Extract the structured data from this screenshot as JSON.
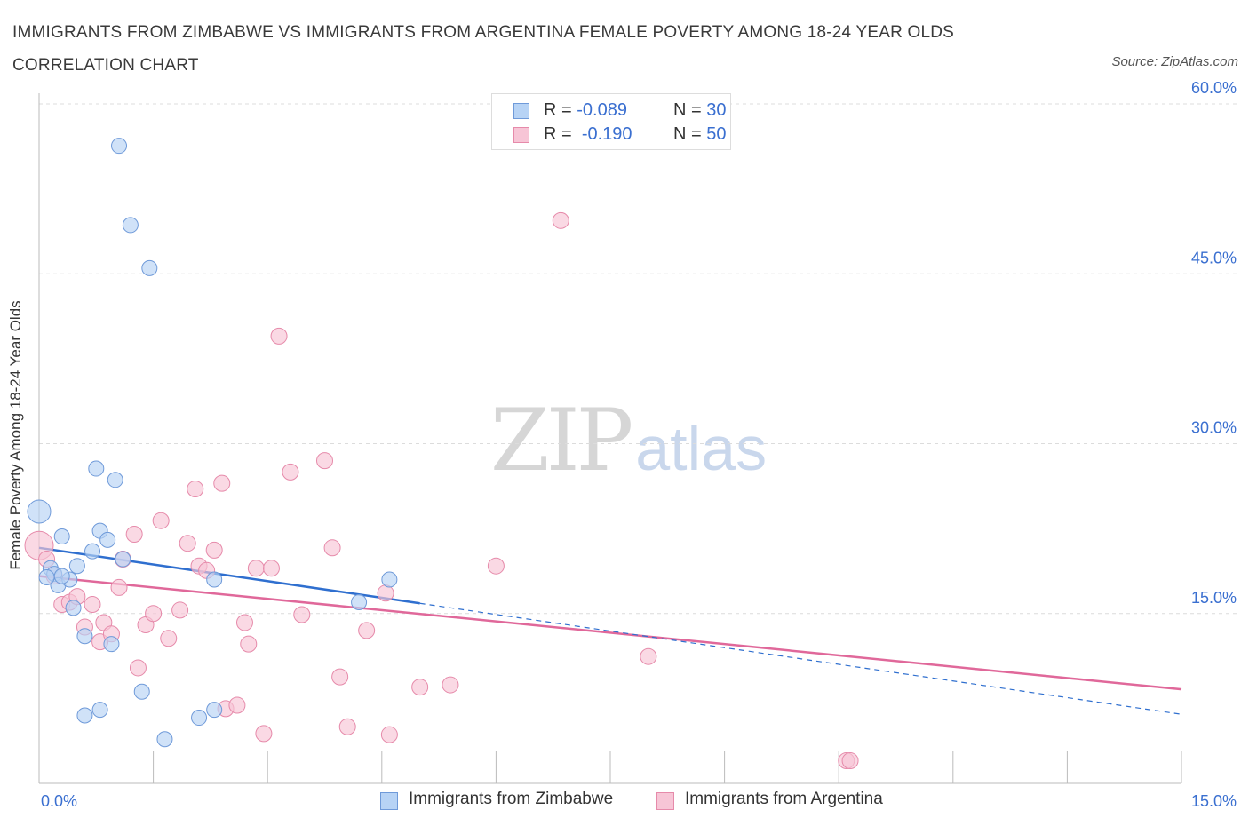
{
  "title": "IMMIGRANTS FROM ZIMBABWE VS IMMIGRANTS FROM ARGENTINA FEMALE POVERTY AMONG 18-24 YEAR OLDS CORRELATION CHART",
  "source": "Source: ZipAtlas.com",
  "watermark": {
    "zip": "ZIP",
    "atlas": "atlas"
  },
  "legend_top": {
    "rows": [
      {
        "r_label": "R =",
        "r_value": "-0.089",
        "n_label": "N =",
        "n_value": "30"
      },
      {
        "r_label": "R =",
        "r_value": "-0.190",
        "n_label": "N =",
        "n_value": "50"
      }
    ]
  },
  "colors": {
    "zimbabwe_fill": "#b7d3f5",
    "zimbabwe_stroke": "#6f9ad9",
    "zimbabwe_line": "#2f6fcf",
    "argentina_fill": "#f7c5d6",
    "argentina_stroke": "#e68aaa",
    "argentina_line": "#e0689a",
    "tick_label": "#3a6fd0",
    "grid": "#dcdcdc"
  },
  "chart_data": {
    "type": "scatter",
    "title": "IMMIGRANTS FROM ZIMBABWE VS IMMIGRANTS FROM ARGENTINA FEMALE POVERTY AMONG 18-24 YEAR OLDS CORRELATION CHART",
    "xlabel": "",
    "ylabel": "Female Poverty Among 18-24 Year Olds",
    "xlim": [
      0,
      15
    ],
    "ylim": [
      0,
      60
    ],
    "x_tick_labels": [
      "0.0%",
      "15.0%"
    ],
    "y_ticks": [
      15,
      30,
      45,
      60
    ],
    "y_tick_labels": [
      "15.0%",
      "30.0%",
      "45.0%",
      "60.0%"
    ],
    "grid": true,
    "legend_position": "bottom",
    "series": [
      {
        "name": "Immigrants from Zimbabwe",
        "points": [
          [
            0.0,
            24.0
          ],
          [
            0.15,
            19.0
          ],
          [
            0.2,
            18.5
          ],
          [
            0.25,
            17.5
          ],
          [
            0.3,
            21.8
          ],
          [
            0.4,
            18.0
          ],
          [
            0.5,
            19.2
          ],
          [
            0.45,
            15.5
          ],
          [
            0.6,
            13.0
          ],
          [
            0.7,
            20.5
          ],
          [
            0.75,
            27.8
          ],
          [
            0.8,
            22.3
          ],
          [
            0.9,
            21.5
          ],
          [
            0.95,
            12.3
          ],
          [
            1.0,
            26.8
          ],
          [
            1.1,
            19.8
          ],
          [
            1.05,
            56.3
          ],
          [
            1.2,
            49.3
          ],
          [
            1.45,
            45.5
          ],
          [
            1.35,
            8.1
          ],
          [
            1.65,
            3.9
          ],
          [
            0.8,
            6.5
          ],
          [
            0.6,
            6.0
          ],
          [
            2.1,
            5.8
          ],
          [
            2.3,
            6.5
          ],
          [
            2.3,
            18.0
          ],
          [
            4.2,
            16.0
          ],
          [
            4.6,
            18.0
          ],
          [
            0.1,
            18.2
          ],
          [
            0.3,
            18.3
          ]
        ],
        "trend": {
          "x": [
            0.0,
            5.0
          ],
          "y": [
            20.8,
            15.9
          ]
        },
        "trend_extension": {
          "x": [
            5.0,
            15.0
          ],
          "y": [
            15.9,
            6.1
          ]
        }
      },
      {
        "name": "Immigrants from Argentina",
        "points": [
          [
            0.0,
            21.0
          ],
          [
            0.1,
            19.8
          ],
          [
            0.3,
            15.8
          ],
          [
            0.4,
            16.0
          ],
          [
            0.5,
            16.5
          ],
          [
            0.6,
            13.8
          ],
          [
            0.7,
            15.8
          ],
          [
            0.8,
            12.5
          ],
          [
            0.85,
            14.2
          ],
          [
            0.95,
            13.2
          ],
          [
            1.05,
            17.3
          ],
          [
            1.1,
            19.8
          ],
          [
            1.25,
            22.0
          ],
          [
            1.3,
            10.2
          ],
          [
            1.4,
            14.0
          ],
          [
            1.5,
            15.0
          ],
          [
            1.6,
            23.2
          ],
          [
            1.7,
            12.8
          ],
          [
            1.85,
            15.3
          ],
          [
            1.95,
            21.2
          ],
          [
            2.05,
            26.0
          ],
          [
            2.1,
            19.2
          ],
          [
            2.2,
            18.8
          ],
          [
            2.3,
            20.6
          ],
          [
            2.4,
            26.5
          ],
          [
            2.45,
            6.6
          ],
          [
            2.6,
            6.9
          ],
          [
            2.7,
            14.2
          ],
          [
            2.75,
            12.3
          ],
          [
            2.85,
            19.0
          ],
          [
            2.95,
            4.4
          ],
          [
            3.05,
            19.0
          ],
          [
            3.15,
            39.5
          ],
          [
            3.3,
            27.5
          ],
          [
            3.45,
            14.9
          ],
          [
            3.75,
            28.5
          ],
          [
            3.85,
            20.8
          ],
          [
            3.95,
            9.4
          ],
          [
            4.05,
            5.0
          ],
          [
            4.3,
            13.5
          ],
          [
            4.55,
            16.8
          ],
          [
            4.6,
            4.3
          ],
          [
            5.0,
            8.5
          ],
          [
            5.4,
            8.7
          ],
          [
            6.0,
            19.2
          ],
          [
            6.85,
            49.7
          ],
          [
            8.0,
            11.2
          ],
          [
            10.6,
            2.0
          ],
          [
            10.65,
            2.0
          ],
          [
            0.2,
            18.3
          ]
        ],
        "trend": {
          "x": [
            0.0,
            15.0
          ],
          "y": [
            18.3,
            8.3
          ]
        }
      }
    ]
  }
}
